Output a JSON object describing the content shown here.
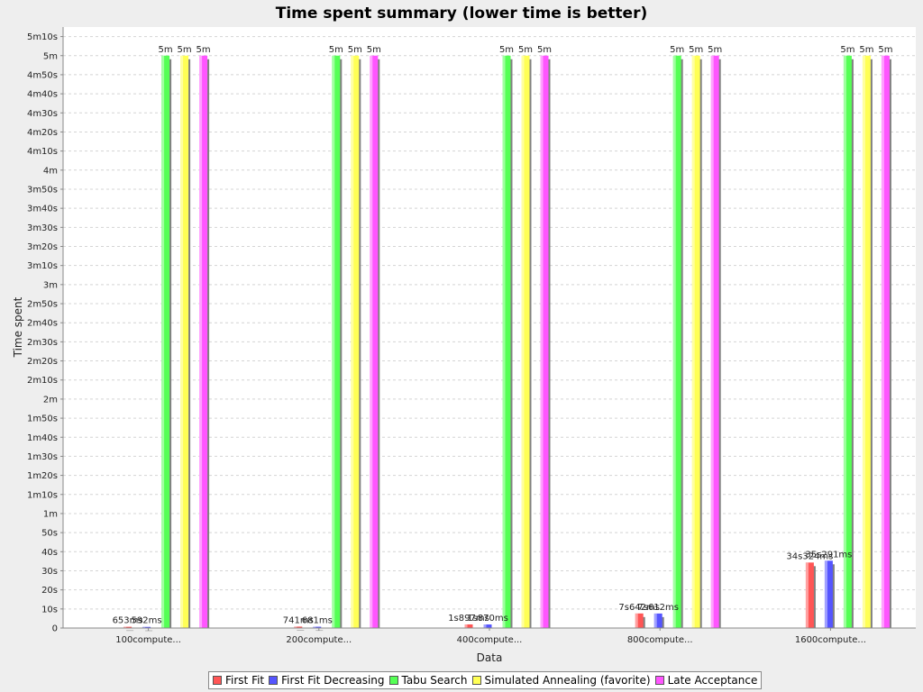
{
  "chart_data": {
    "type": "bar",
    "title": "Time spent summary (lower time is better)",
    "xlabel": "Data",
    "ylabel": "Time spent",
    "categories": [
      "100compute...",
      "200compute...",
      "400compute...",
      "800compute...",
      "1600compute..."
    ],
    "ylim": [
      0,
      315
    ],
    "y_unit": "seconds",
    "y_ticks": [
      {
        "v": 0,
        "label": "0"
      },
      {
        "v": 10,
        "label": "10s"
      },
      {
        "v": 20,
        "label": "20s"
      },
      {
        "v": 30,
        "label": "30s"
      },
      {
        "v": 40,
        "label": "40s"
      },
      {
        "v": 50,
        "label": "50s"
      },
      {
        "v": 60,
        "label": "1m"
      },
      {
        "v": 70,
        "label": "1m10s"
      },
      {
        "v": 80,
        "label": "1m20s"
      },
      {
        "v": 90,
        "label": "1m30s"
      },
      {
        "v": 100,
        "label": "1m40s"
      },
      {
        "v": 110,
        "label": "1m50s"
      },
      {
        "v": 120,
        "label": "2m"
      },
      {
        "v": 130,
        "label": "2m10s"
      },
      {
        "v": 140,
        "label": "2m20s"
      },
      {
        "v": 150,
        "label": "2m30s"
      },
      {
        "v": 160,
        "label": "2m40s"
      },
      {
        "v": 170,
        "label": "2m50s"
      },
      {
        "v": 180,
        "label": "3m"
      },
      {
        "v": 190,
        "label": "3m10s"
      },
      {
        "v": 200,
        "label": "3m20s"
      },
      {
        "v": 210,
        "label": "3m30s"
      },
      {
        "v": 220,
        "label": "3m40s"
      },
      {
        "v": 230,
        "label": "3m50s"
      },
      {
        "v": 240,
        "label": "4m"
      },
      {
        "v": 250,
        "label": "4m10s"
      },
      {
        "v": 260,
        "label": "4m20s"
      },
      {
        "v": 270,
        "label": "4m30s"
      },
      {
        "v": 280,
        "label": "4m40s"
      },
      {
        "v": 290,
        "label": "4m50s"
      },
      {
        "v": 300,
        "label": "5m"
      },
      {
        "v": 310,
        "label": "5m10s"
      }
    ],
    "grid": true,
    "legend_position": "bottom",
    "series": [
      {
        "name": "First Fit",
        "color": "#ff5555",
        "values": [
          0.653,
          0.741,
          1.897,
          7.642,
          34.324
        ],
        "labels": [
          "653ms",
          "741ms",
          "1s897ms",
          "7s642ms",
          "34s324ms"
        ]
      },
      {
        "name": "First Fit Decreasing",
        "color": "#5555ff",
        "values": [
          0.592,
          0.681,
          1.87,
          7.612,
          35.291
        ],
        "labels": [
          "592ms",
          "681ms",
          "1s870ms",
          "7s612ms",
          "35s291ms"
        ]
      },
      {
        "name": "Tabu Search",
        "color": "#55ff55",
        "values": [
          300,
          300,
          300,
          300,
          300
        ],
        "labels": [
          "5m",
          "5m",
          "5m",
          "5m",
          "5m"
        ]
      },
      {
        "name": "Simulated Annealing (favorite)",
        "color": "#ffff55",
        "values": [
          300,
          300,
          300,
          300,
          300
        ],
        "labels": [
          "5m",
          "5m",
          "5m",
          "5m",
          "5m"
        ]
      },
      {
        "name": "Late Acceptance",
        "color": "#ff55ff",
        "values": [
          300,
          300,
          300,
          300,
          300
        ],
        "labels": [
          "5m",
          "5m",
          "5m",
          "5m",
          "5m"
        ]
      }
    ]
  }
}
